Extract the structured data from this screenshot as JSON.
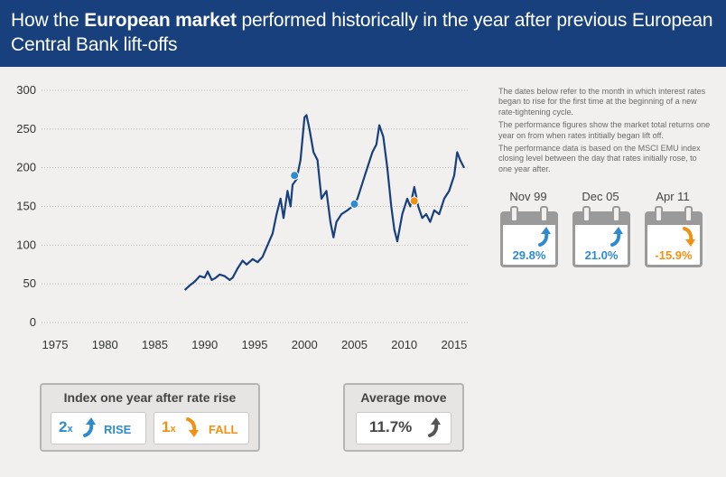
{
  "title": {
    "pre": "How the ",
    "bold": "European market",
    "post": " performed historically in the year after previous European Central Bank lift-offs"
  },
  "chart_data": {
    "type": "line",
    "x_ticks": [
      "1975",
      "1980",
      "1985",
      "1990",
      "1995",
      "2000",
      "2005",
      "2010",
      "2015"
    ],
    "y_ticks": [
      "0",
      "50",
      "100",
      "150",
      "200",
      "250",
      "300"
    ],
    "xlim": [
      1975,
      2016
    ],
    "ylim": [
      0,
      300
    ],
    "grid": "horizontal dotted",
    "series": [
      {
        "x": [
          1988.0,
          1988.5,
          1989.0,
          1989.5,
          1990.0,
          1990.3,
          1990.7,
          1991.0,
          1991.5,
          1992.0,
          1992.5,
          1992.8,
          1993.3,
          1993.8,
          1994.2,
          1994.8,
          1995.3,
          1995.8,
          1996.3,
          1996.8,
          1997.2,
          1997.6,
          1997.9,
          1998.3,
          1998.6,
          1998.8,
          1999.2,
          1999.6,
          2000.0,
          2000.2,
          2000.5,
          2000.9,
          2001.3,
          2001.7,
          2002.2,
          2002.6,
          2002.9,
          2003.2,
          2003.7,
          2004.3,
          2004.8,
          2005.3,
          2005.8,
          2006.3,
          2006.8,
          2007.2,
          2007.5,
          2007.9,
          2008.3,
          2008.7,
          2009.0,
          2009.3,
          2009.8,
          2010.3,
          2010.6,
          2011.0,
          2011.4,
          2011.8,
          2012.2,
          2012.6,
          2013.0,
          2013.5,
          2014.0,
          2014.5,
          2015.0,
          2015.3,
          2015.6,
          2016.0
        ],
        "y": [
          42,
          48,
          53,
          60,
          58,
          66,
          55,
          57,
          62,
          60,
          55,
          58,
          70,
          80,
          75,
          82,
          78,
          85,
          100,
          115,
          140,
          160,
          135,
          170,
          150,
          178,
          185,
          210,
          265,
          268,
          250,
          220,
          210,
          160,
          170,
          130,
          110,
          130,
          140,
          145,
          150,
          160,
          180,
          200,
          220,
          230,
          255,
          240,
          200,
          150,
          120,
          105,
          140,
          160,
          150,
          175,
          150,
          135,
          140,
          130,
          145,
          140,
          160,
          170,
          190,
          220,
          210,
          200
        ]
      }
    ],
    "markers": [
      {
        "x": 1999.0,
        "y": 190,
        "color": "#2e8bd0"
      },
      {
        "x": 2005.0,
        "y": 153,
        "color": "#2e8bd0"
      },
      {
        "x": 2011.0,
        "y": 157,
        "color": "#f29111"
      }
    ],
    "line_color": "#17407d"
  },
  "notes": [
    "The dates below refer to the month in which interest rates began to rise for the first time at the beginning of a new rate-tightening cycle.",
    "The performance figures show the market total returns one year on from when rates intitially began lift off.",
    "The performance data is based on the MSCI EMU index closing level between the day that rates initially rose, to one year after."
  ],
  "calendars": [
    {
      "date": "Nov 99",
      "value": "29.8%",
      "direction": "up",
      "color": "#2e8bd0"
    },
    {
      "date": "Dec 05",
      "value": "21.0%",
      "direction": "up",
      "color": "#2e8bd0"
    },
    {
      "date": "Apr 11",
      "value": "-15.9%",
      "direction": "down",
      "color": "#f29111"
    }
  ],
  "summary": {
    "title": "Index one year after rate rise",
    "rise": {
      "count": "2",
      "times": "x",
      "label": "RISE",
      "color": "#2e8bd0"
    },
    "fall": {
      "count": "1",
      "times": "x",
      "label": "FALL",
      "color": "#f29111"
    }
  },
  "average": {
    "title": "Average move",
    "value": "11.7%"
  }
}
